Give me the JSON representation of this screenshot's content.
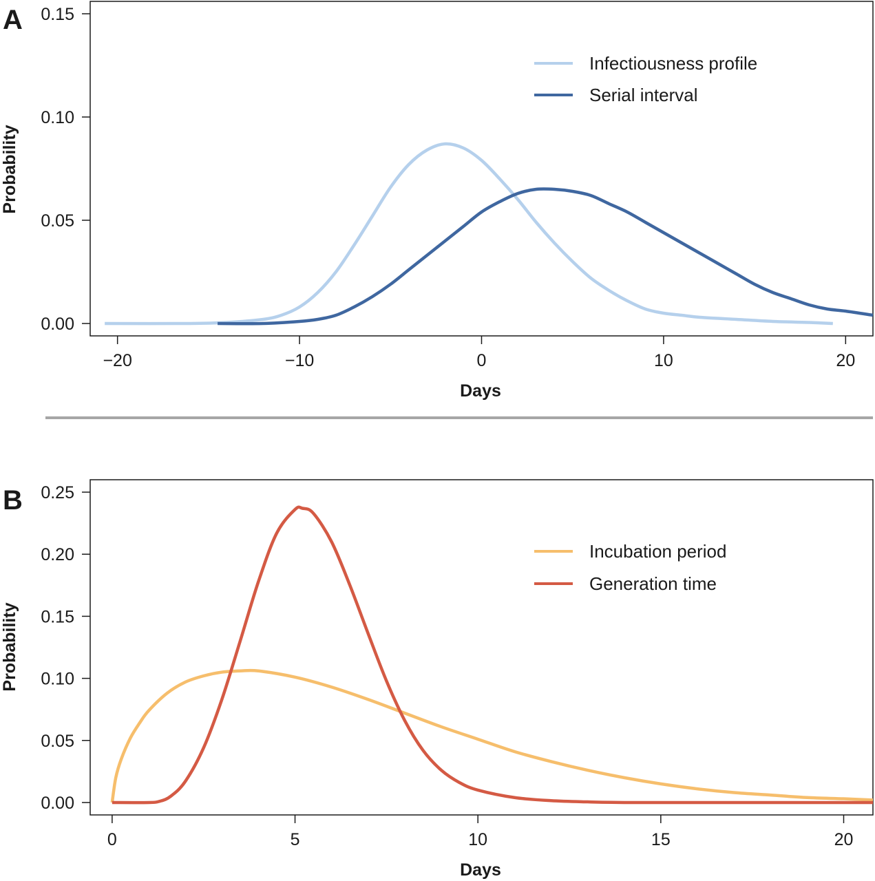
{
  "colors": {
    "infectiousness": "#b5d0ec",
    "serial": "#3f67a0",
    "incubation": "#f6be6c",
    "generation": "#d45a44",
    "axis": "#1a1a1a",
    "divider": "#a6a6a6"
  },
  "chart_data": [
    {
      "panel": "A",
      "type": "line",
      "xlabel": "Days",
      "ylabel": "Probability",
      "xlim": [
        -21.5,
        21.5
      ],
      "ylim": [
        -0.006,
        0.156
      ],
      "xticks": [
        -20,
        -10,
        0,
        10,
        20
      ],
      "xtick_labels": [
        "−20",
        "−10",
        "0",
        "10",
        "20"
      ],
      "yticks": [
        0.0,
        0.05,
        0.1,
        0.15
      ],
      "ytick_labels": [
        "0.00",
        "0.05",
        "0.10",
        "0.15"
      ],
      "grid": false,
      "legend_position": "top-right",
      "series": [
        {
          "name": "Infectiousness profile",
          "color_key": "infectiousness",
          "x": [
            -20.7,
            -16,
            -14,
            -12,
            -11,
            -10,
            -9,
            -8,
            -7,
            -6,
            -5,
            -4,
            -3,
            -2,
            -1,
            0,
            1,
            2,
            3,
            4,
            5,
            6,
            7,
            8,
            9,
            10,
            11,
            12,
            14,
            16,
            18,
            19.3
          ],
          "y": [
            0.0,
            0.0,
            0.0005,
            0.002,
            0.004,
            0.008,
            0.015,
            0.025,
            0.038,
            0.052,
            0.066,
            0.077,
            0.084,
            0.087,
            0.085,
            0.079,
            0.07,
            0.06,
            0.049,
            0.039,
            0.03,
            0.022,
            0.016,
            0.011,
            0.007,
            0.005,
            0.004,
            0.003,
            0.002,
            0.001,
            0.0005,
            0.0
          ]
        },
        {
          "name": "Serial interval",
          "color_key": "serial",
          "x": [
            -14.5,
            -12,
            -10,
            -9,
            -8,
            -7,
            -6,
            -5,
            -4,
            -3,
            -2,
            -1,
            0,
            1,
            2,
            3,
            4,
            5,
            6,
            7,
            8,
            9,
            10,
            11,
            12,
            13,
            14,
            15,
            16,
            17,
            18,
            19,
            20,
            21.5
          ],
          "y": [
            0.0,
            0.0,
            0.001,
            0.002,
            0.004,
            0.008,
            0.013,
            0.019,
            0.026,
            0.033,
            0.04,
            0.047,
            0.054,
            0.059,
            0.063,
            0.065,
            0.065,
            0.064,
            0.062,
            0.058,
            0.054,
            0.049,
            0.044,
            0.039,
            0.034,
            0.029,
            0.024,
            0.019,
            0.015,
            0.012,
            0.009,
            0.007,
            0.006,
            0.004
          ]
        }
      ]
    },
    {
      "panel": "B",
      "type": "line",
      "xlabel": "Days",
      "ylabel": "Probability",
      "xlim": [
        -0.6,
        20.8
      ],
      "ylim": [
        -0.01,
        0.26
      ],
      "xticks": [
        0,
        5,
        10,
        15,
        20
      ],
      "xtick_labels": [
        "0",
        "5",
        "10",
        "15",
        "20"
      ],
      "yticks": [
        0.0,
        0.05,
        0.1,
        0.15,
        0.2,
        0.25
      ],
      "ytick_labels": [
        "0.00",
        "0.05",
        "0.10",
        "0.15",
        "0.20",
        "0.25"
      ],
      "grid": false,
      "legend_position": "top-right",
      "series": [
        {
          "name": "Incubation period",
          "color_key": "incubation",
          "x": [
            0,
            0.1,
            0.25,
            0.5,
            0.75,
            1,
            1.5,
            2,
            2.5,
            3,
            3.5,
            4,
            5,
            6,
            7,
            8,
            9,
            10,
            11,
            12,
            13,
            14,
            15,
            16,
            17,
            18,
            19,
            20,
            20.8
          ],
          "y": [
            0.0,
            0.02,
            0.035,
            0.052,
            0.064,
            0.074,
            0.088,
            0.097,
            0.102,
            0.105,
            0.106,
            0.106,
            0.101,
            0.093,
            0.083,
            0.072,
            0.061,
            0.051,
            0.041,
            0.033,
            0.026,
            0.02,
            0.015,
            0.011,
            0.008,
            0.006,
            0.004,
            0.003,
            0.002
          ]
        },
        {
          "name": "Generation time",
          "color_key": "generation",
          "x": [
            0,
            1,
            1.3,
            1.6,
            2,
            2.5,
            3,
            3.5,
            4,
            4.5,
            5,
            5.2,
            5.5,
            6,
            6.5,
            7,
            7.5,
            8,
            8.5,
            9,
            9.5,
            10,
            11,
            12,
            13,
            14,
            16,
            18,
            20.8
          ],
          "y": [
            0.0,
            0.0,
            0.001,
            0.005,
            0.017,
            0.044,
            0.083,
            0.13,
            0.178,
            0.217,
            0.236,
            0.237,
            0.233,
            0.21,
            0.175,
            0.136,
            0.098,
            0.066,
            0.042,
            0.026,
            0.016,
            0.01,
            0.004,
            0.0015,
            0.0005,
            0.0,
            0.0,
            0.0,
            0.0
          ]
        }
      ]
    }
  ]
}
